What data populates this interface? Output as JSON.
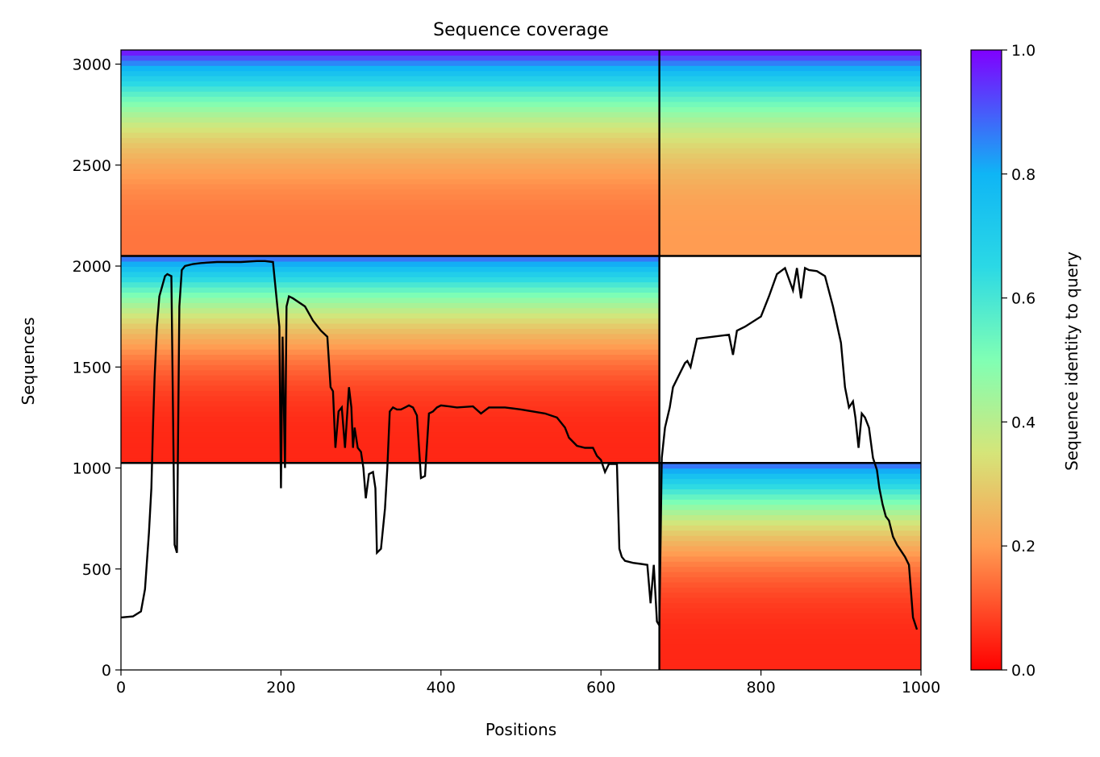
{
  "chart_data": {
    "type": "heatmap",
    "title": "Sequence coverage",
    "xlabel": "Positions",
    "ylabel": "Sequences",
    "colorbar_label": "Sequence identity to query",
    "colormap": "rainbow",
    "xlim": [
      0,
      1000
    ],
    "ylim": [
      0,
      3070
    ],
    "x_ticks": [
      0,
      200,
      400,
      600,
      800,
      1000
    ],
    "y_ticks": [
      0,
      500,
      1000,
      1500,
      2000,
      2500,
      3000
    ],
    "colorbar_ticks": [
      "0.0",
      "0.2",
      "0.4",
      "0.6",
      "0.8",
      "1.0"
    ],
    "grid": false,
    "chain_boundaries_x": [
      673
    ],
    "chain_boundaries_y": [
      1025,
      2050
    ],
    "blocks": [
      {
        "x": [
          0,
          673
        ],
        "y": [
          2050,
          3070
        ],
        "top_identity": 1.0,
        "bottom_identity": 0.15
      },
      {
        "x": [
          673,
          1000
        ],
        "y": [
          2050,
          3070
        ],
        "top_identity": 1.0,
        "bottom_identity": 0.2
      },
      {
        "x": [
          0,
          673
        ],
        "y": [
          1025,
          2050
        ],
        "top_identity": 0.9,
        "bottom_identity": 0.05
      },
      {
        "x": [
          673,
          1000
        ],
        "y": [
          0,
          1025
        ],
        "top_identity": 0.9,
        "bottom_identity": 0.05
      }
    ],
    "coverage_line": {
      "x": [
        0,
        15,
        25,
        30,
        35,
        38,
        40,
        42,
        45,
        48,
        55,
        58,
        63,
        67,
        70,
        73,
        76,
        80,
        90,
        100,
        120,
        150,
        170,
        180,
        190,
        198,
        200,
        202,
        205,
        207,
        210,
        215,
        230,
        240,
        250,
        258,
        262,
        265,
        268,
        272,
        276,
        280,
        285,
        288,
        290,
        292,
        296,
        300,
        303,
        306,
        310,
        315,
        318,
        320,
        325,
        330,
        333,
        336,
        340,
        345,
        350,
        355,
        360,
        365,
        370,
        375,
        380,
        385,
        390,
        395,
        400,
        410,
        420,
        440,
        450,
        460,
        480,
        500,
        515,
        530,
        545,
        555,
        560,
        570,
        580,
        590,
        595,
        600,
        605,
        610,
        620,
        623,
        626,
        630,
        640,
        650,
        658,
        662,
        666,
        670,
        673,
        676,
        680,
        686,
        690,
        700,
        705,
        708,
        712,
        720,
        740,
        760,
        765,
        770,
        780,
        800,
        810,
        820,
        830,
        840,
        845,
        850,
        855,
        860,
        870,
        880,
        890,
        900,
        905,
        910,
        915,
        918,
        922,
        926,
        930,
        935,
        940,
        945,
        948,
        952,
        956,
        960,
        965,
        970,
        975,
        980,
        985,
        990,
        995,
        997,
        999
      ],
      "y": [
        260,
        265,
        290,
        400,
        680,
        900,
        1200,
        1450,
        1700,
        1850,
        1950,
        1960,
        1950,
        620,
        580,
        1800,
        1980,
        2000,
        2010,
        2015,
        2020,
        2020,
        2025,
        2025,
        2020,
        1700,
        900,
        1650,
        1000,
        1800,
        1850,
        1840,
        1800,
        1730,
        1680,
        1650,
        1400,
        1380,
        1100,
        1280,
        1300,
        1100,
        1400,
        1300,
        1100,
        1200,
        1100,
        1080,
        1000,
        850,
        970,
        980,
        900,
        580,
        600,
        800,
        1000,
        1280,
        1300,
        1290,
        1290,
        1300,
        1310,
        1300,
        1260,
        950,
        960,
        1270,
        1280,
        1300,
        1310,
        1305,
        1300,
        1305,
        1270,
        1300,
        1300,
        1290,
        1280,
        1270,
        1250,
        1200,
        1150,
        1110,
        1100,
        1100,
        1060,
        1040,
        980,
        1020,
        1020,
        600,
        560,
        540,
        530,
        525,
        520,
        330,
        520,
        240,
        220,
        1050,
        1200,
        1300,
        1400,
        1480,
        1520,
        1530,
        1500,
        1640,
        1650,
        1660,
        1560,
        1680,
        1700,
        1750,
        1850,
        1960,
        1990,
        1880,
        1990,
        1840,
        1990,
        1980,
        1975,
        1950,
        1800,
        1620,
        1400,
        1300,
        1330,
        1250,
        1100,
        1270,
        1250,
        1200,
        1050,
        990,
        900,
        820,
        760,
        740,
        660,
        620,
        590,
        560,
        520,
        260,
        200
      ]
    }
  }
}
